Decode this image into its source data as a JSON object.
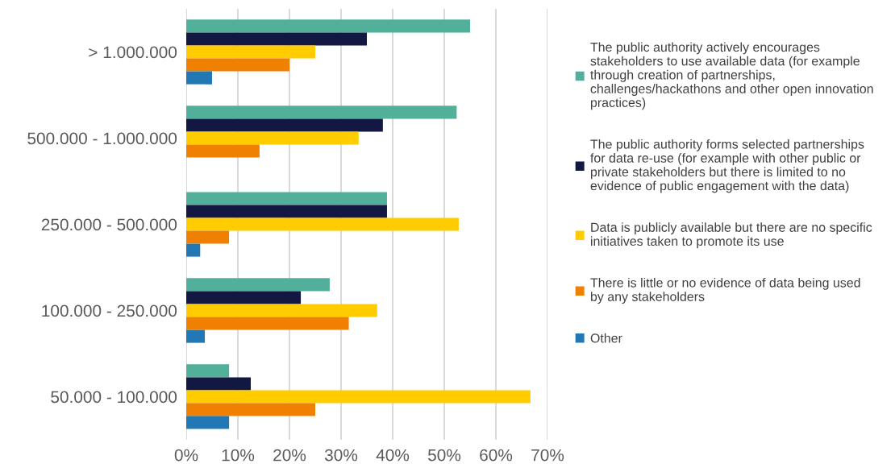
{
  "chart_data": {
    "type": "bar",
    "orientation": "horizontal",
    "categories": [
      "> 1.000.000",
      "500.000 - 1.000.000",
      "250.000 - 500.000",
      "100.000 - 250.000",
      "50.000 - 100.000"
    ],
    "series": [
      {
        "name": "The public authority actively encourages\nstakeholders to use available data (for example\nthrough creation of partnerships,\nchallenges/hackathons and other open innovation\npractices)",
        "color": "#52b09a",
        "values": [
          55.0,
          52.4,
          38.9,
          27.8,
          8.3
        ]
      },
      {
        "name": "The public authority forms selected partnerships\nfor data re-use (for example with other public or\nprivate stakeholders but there is limited to no\nevidence of public engagement with the data)",
        "color": "#121842",
        "values": [
          35.0,
          38.1,
          38.9,
          22.2,
          12.5
        ]
      },
      {
        "name": "Data is publicly available but there are no specific\ninitiatives taken to promote its use",
        "color": "#ffcc00",
        "values": [
          25.0,
          33.4,
          52.8,
          37.0,
          66.7
        ]
      },
      {
        "name": "There is little or no evidence of data being used\nby any stakeholders",
        "color": "#f08000",
        "values": [
          20.0,
          14.2,
          8.3,
          31.5,
          25.0
        ]
      },
      {
        "name": "Other",
        "color": "#2278b5",
        "values": [
          5.0,
          0,
          2.7,
          3.6,
          8.3
        ]
      }
    ],
    "xlim": [
      0,
      70
    ],
    "xticks": [
      {
        "value": 0,
        "label": "0%"
      },
      {
        "value": 10,
        "label": "10%"
      },
      {
        "value": 20,
        "label": "20%"
      },
      {
        "value": 30,
        "label": "30%"
      },
      {
        "value": 40,
        "label": "40%"
      },
      {
        "value": 50,
        "label": "50%"
      },
      {
        "value": 60,
        "label": "60%"
      },
      {
        "value": 70,
        "label": "70%"
      }
    ],
    "grid": "x",
    "legend": "right"
  }
}
